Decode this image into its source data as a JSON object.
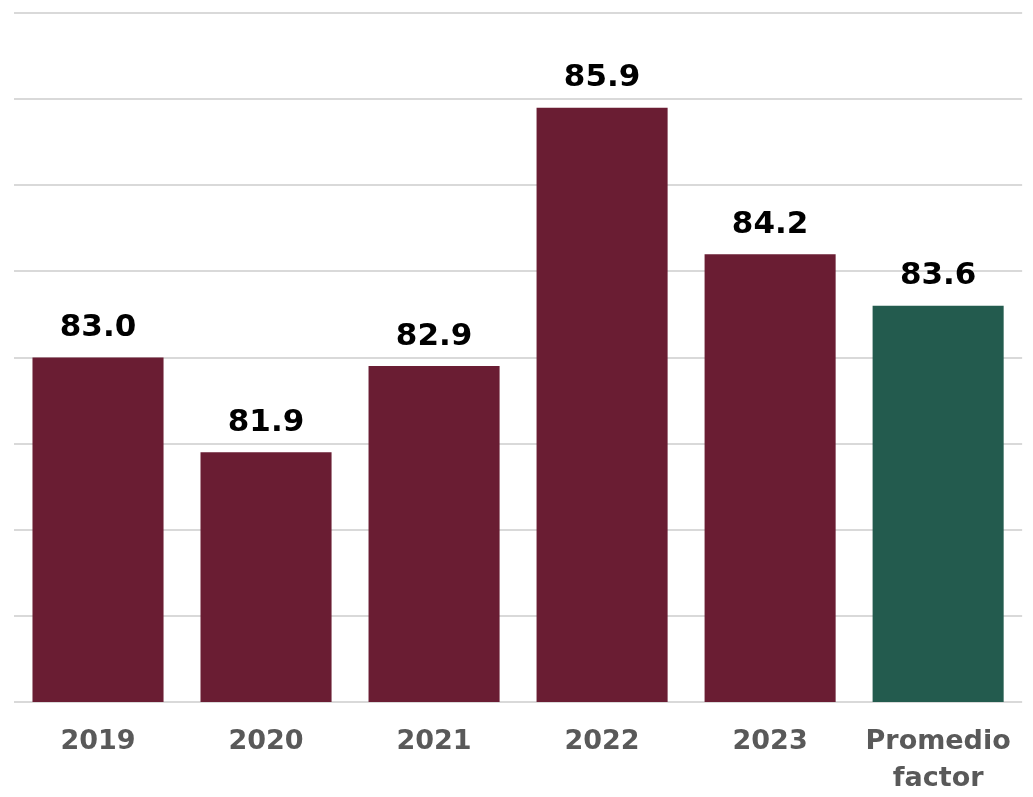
{
  "chart_data": {
    "type": "bar",
    "categories": [
      "2019",
      "2020",
      "2021",
      "2022",
      "2023",
      "Promedio factor"
    ],
    "values": [
      83.0,
      81.9,
      82.9,
      85.9,
      84.2,
      83.6
    ],
    "colors": [
      "#6a1d33",
      "#6a1d33",
      "#6a1d33",
      "#6a1d33",
      "#6a1d33",
      "#235b4e"
    ],
    "value_labels": [
      "83.0",
      "81.9",
      "82.9",
      "85.9",
      "84.2",
      "83.6"
    ],
    "ylim": [
      79,
      87
    ],
    "yticks": [
      {
        "value": 79,
        "label": null
      },
      {
        "value": 80,
        "label": null
      },
      {
        "value": 81,
        "label": null
      },
      {
        "value": 82,
        "label": null
      },
      {
        "value": 83,
        "label": null
      },
      {
        "value": 84,
        "label": null
      },
      {
        "value": 85,
        "label": null
      },
      {
        "value": 86,
        "label": null
      },
      {
        "value": 87,
        "label": null
      }
    ],
    "grid": "y",
    "tick_labels": "x"
  }
}
